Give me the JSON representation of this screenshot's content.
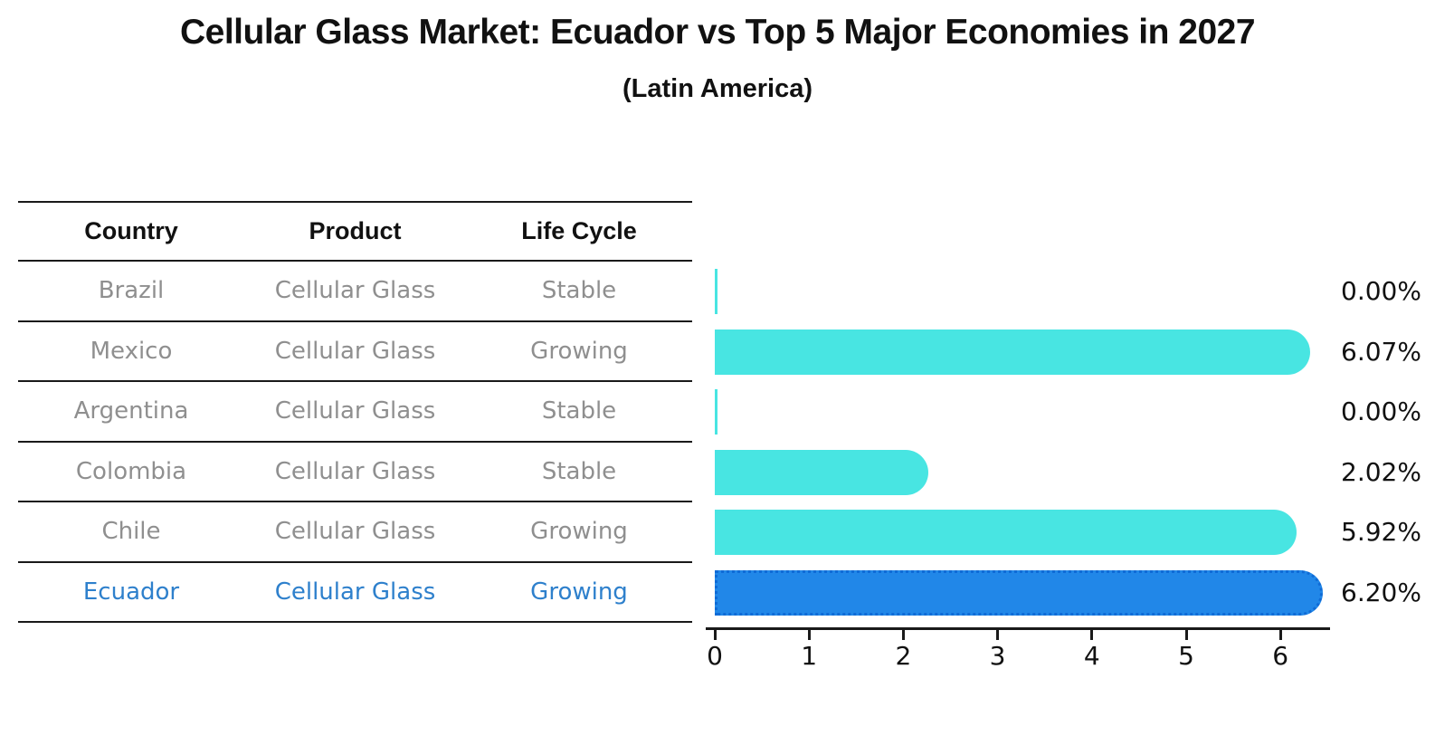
{
  "title": "Cellular Glass Market: Ecuador vs Top 5 Major Economies in 2027",
  "subtitle": "(Latin America)",
  "table": {
    "headers": [
      "Country",
      "Product",
      "Life Cycle"
    ],
    "rows": [
      {
        "country": "Brazil",
        "product": "Cellular Glass",
        "life_cycle": "Stable"
      },
      {
        "country": "Mexico",
        "product": "Cellular Glass",
        "life_cycle": "Growing"
      },
      {
        "country": "Argentina",
        "product": "Cellular Glass",
        "life_cycle": "Stable"
      },
      {
        "country": "Colombia",
        "product": "Cellular Glass",
        "life_cycle": "Stable"
      },
      {
        "country": "Chile",
        "product": "Cellular Glass",
        "life_cycle": "Growing"
      },
      {
        "country": "Ecuador",
        "product": "Cellular Glass",
        "life_cycle": "Growing"
      }
    ]
  },
  "chart_data": {
    "type": "bar",
    "orientation": "horizontal",
    "title": "Cellular Glass Market: Ecuador vs Top 5 Major Economies in 2027",
    "subtitle": "(Latin America)",
    "categories": [
      "Brazil",
      "Mexico",
      "Argentina",
      "Colombia",
      "Chile",
      "Ecuador"
    ],
    "values": [
      0.0,
      6.07,
      0.0,
      2.02,
      5.92,
      6.2
    ],
    "labels": [
      "0.00%",
      "6.07%",
      "0.00%",
      "2.02%",
      "5.92%",
      "6.20%"
    ],
    "x_ticks": [
      "0",
      "1",
      "2",
      "3",
      "4",
      "5",
      "6"
    ],
    "xlim": [
      0,
      6.6
    ],
    "grid": false,
    "highlight_index": 5,
    "colors": {
      "bar": "#48e5e2",
      "highlight_bar": "#2187e8",
      "highlight_border": "#0f6bd6",
      "highlight_text": "#2e80cc",
      "muted_text": "#8f8f8f",
      "axis": "#1a1a1a"
    }
  }
}
